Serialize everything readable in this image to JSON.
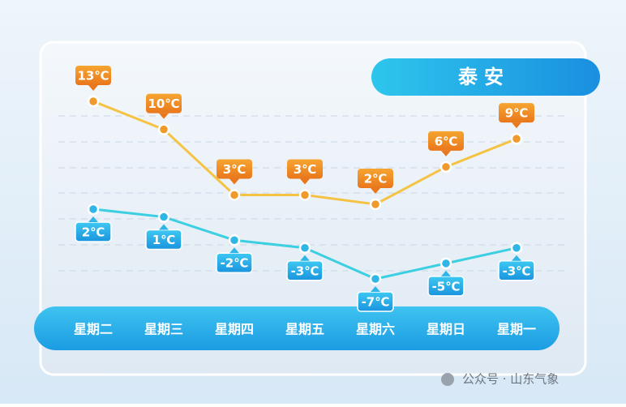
{
  "chart_data": {
    "type": "line",
    "title": "泰安",
    "categories": [
      "星期二",
      "星期三",
      "星期四",
      "星期五",
      "星期六",
      "星期日",
      "星期一"
    ],
    "series": [
      {
        "color": "#f5c343",
        "values": [
          13,
          10,
          3,
          3,
          2,
          6,
          9
        ],
        "value_labels": [
          "13℃",
          "10℃",
          "3℃",
          "3℃",
          "2℃",
          "6℃",
          "9℃"
        ]
      },
      {
        "color": "#3ccfe2",
        "values": [
          2,
          1,
          -2,
          -3,
          -7,
          -5,
          -3
        ],
        "value_labels": [
          "2℃",
          "1℃",
          "-2℃",
          "-3℃",
          "-7℃",
          "-5℃",
          "-3℃"
        ]
      }
    ]
  },
  "watermark": "公众号 · 山东气象"
}
